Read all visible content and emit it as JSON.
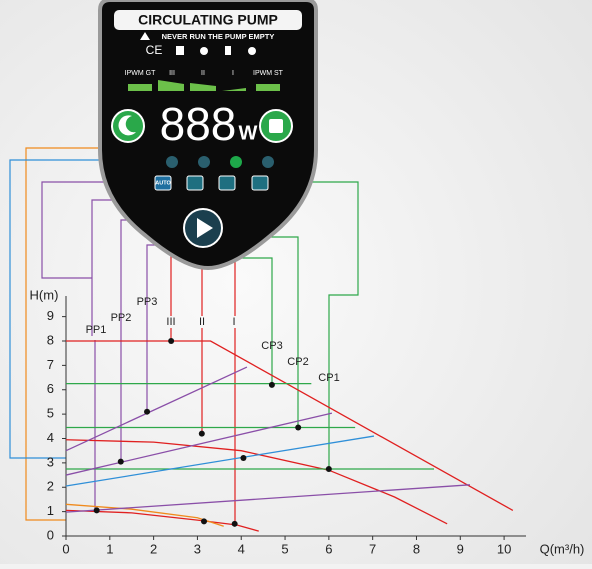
{
  "panel": {
    "title": "CIRCULATING PUMP",
    "warning": "NEVER RUN THE PUMP EMPTY",
    "marks": "CE",
    "speed_labels": [
      "IPWM GT",
      "III",
      "II",
      "I",
      "IPWM ST"
    ],
    "display": "888",
    "unit": "W",
    "mode": "AUTO"
  },
  "chart_data": {
    "type": "line",
    "y_label": "H(m)",
    "x_label": "Q(m³/h)",
    "xlim": [
      0,
      10.5
    ],
    "ylim": [
      0,
      9.6
    ],
    "xticks": [
      0,
      1,
      2,
      3,
      4,
      5,
      6,
      7,
      8,
      9,
      10
    ],
    "yticks": [
      0,
      1,
      2,
      3,
      4,
      5,
      6,
      7,
      8,
      9
    ],
    "annotations": [
      "PP1",
      "PP2",
      "PP3",
      "III",
      "II",
      "I",
      "CP3",
      "CP2",
      "CP1"
    ],
    "series": [
      {
        "color": "#e02020",
        "x": [
          0,
          3.3,
          10.2
        ],
        "values": [
          8,
          8,
          1.05
        ]
      },
      {
        "color": "#e02020",
        "x": [
          0,
          2,
          4,
          6,
          7.5,
          8.7
        ],
        "values": [
          3.95,
          3.85,
          3.5,
          2.7,
          1.6,
          0.5
        ]
      },
      {
        "color": "#e02020",
        "x": [
          0,
          1.5,
          3,
          3.9,
          4.4
        ],
        "values": [
          1.05,
          0.95,
          0.65,
          0.45,
          0.2
        ]
      },
      {
        "color": "#f08a1c",
        "x": [
          0,
          1.5,
          3,
          3.6
        ],
        "values": [
          1.3,
          1.1,
          0.75,
          0.4
        ]
      },
      {
        "color": "#2ea84a",
        "x": [
          0,
          5.6
        ],
        "values": [
          6.25,
          6.25
        ]
      },
      {
        "color": "#2ea84a",
        "x": [
          0,
          6.6
        ],
        "values": [
          4.45,
          4.45
        ]
      },
      {
        "color": "#2ea84a",
        "x": [
          0,
          8.4
        ],
        "values": [
          2.75,
          2.75
        ]
      },
      {
        "color": "#8a4fa8",
        "x": [
          0,
          4.13
        ],
        "values": [
          3.5,
          6.93
        ]
      },
      {
        "color": "#8a4fa8",
        "x": [
          0,
          6.07
        ],
        "values": [
          2.5,
          5.04
        ]
      },
      {
        "color": "#8a4fa8",
        "x": [
          0,
          9.22
        ],
        "values": [
          0.98,
          2.1
        ]
      },
      {
        "color": "#2f8fd8",
        "x": [
          0,
          7.03
        ],
        "values": [
          2.05,
          4.1
        ]
      },
      {
        "color": "#111111",
        "markers": true,
        "x": [
          2.4,
          4.7,
          1.85,
          3.1,
          5.3,
          1.25,
          4.05,
          6.0,
          0.7,
          3.15,
          3.85
        ],
        "values": [
          8,
          6.2,
          5.1,
          4.2,
          4.45,
          3.05,
          3.2,
          2.75,
          1.05,
          0.6,
          0.5
        ]
      }
    ]
  }
}
